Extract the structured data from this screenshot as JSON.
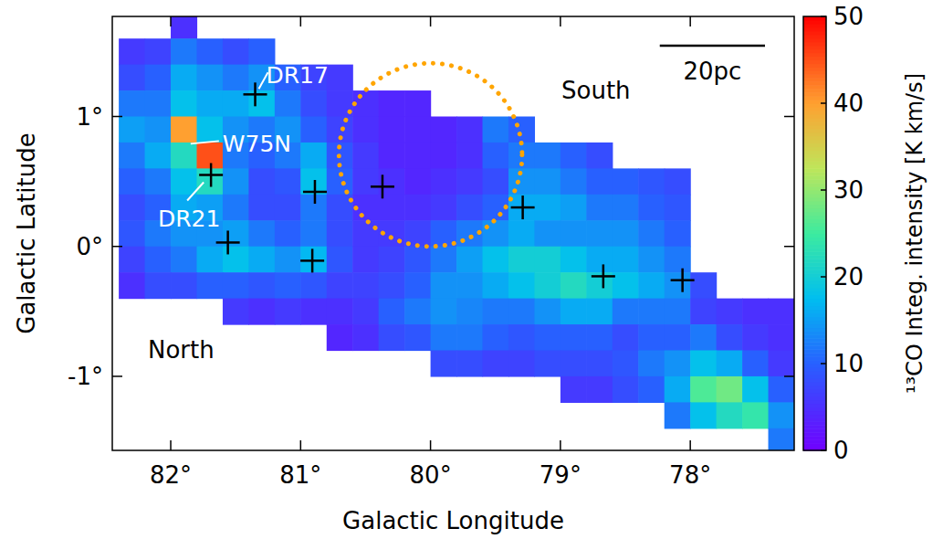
{
  "chart_data": {
    "type": "heatmap",
    "x_label": "Galactic Longitude",
    "y_label": "Galactic Latitude",
    "xlim": [
      82.45,
      77.2
    ],
    "ylim": [
      -1.57,
      1.77
    ],
    "xticks": [
      {
        "value": 82,
        "label": "82°"
      },
      {
        "value": 81,
        "label": "81°"
      },
      {
        "value": 80,
        "label": "80°"
      },
      {
        "value": 79,
        "label": "79°"
      },
      {
        "value": 78,
        "label": "78°"
      }
    ],
    "yticks": [
      {
        "value": -1,
        "label": "-1°"
      },
      {
        "value": 0,
        "label": "0°"
      },
      {
        "value": 1,
        "label": "1°"
      }
    ],
    "x": [
      82.3,
      82.1,
      81.9,
      81.7,
      81.5,
      81.3,
      81.1,
      80.9,
      80.7,
      80.5,
      80.3,
      80.1,
      79.9,
      79.7,
      79.5,
      79.3,
      79.1,
      78.9,
      78.7,
      78.5,
      78.3,
      78.1,
      77.9,
      77.7,
      77.5,
      77.3
    ],
    "y": [
      1.7,
      1.5,
      1.3,
      1.1,
      0.9,
      0.7,
      0.5,
      0.3,
      0.1,
      -0.1,
      -0.3,
      -0.5,
      -0.7,
      -0.9,
      -1.1,
      -1.3,
      -1.5
    ],
    "values": [
      [
        null,
        null,
        5,
        null,
        null,
        null,
        null,
        null,
        null,
        null,
        null,
        null,
        null,
        null,
        null,
        null,
        null,
        null,
        null,
        null,
        null,
        null,
        null,
        null,
        null,
        null
      ],
      [
        6,
        7,
        12,
        10,
        8,
        10,
        null,
        null,
        null,
        null,
        null,
        null,
        null,
        null,
        null,
        null,
        null,
        null,
        null,
        null,
        null,
        null,
        null,
        null,
        null,
        null
      ],
      [
        8,
        10,
        16,
        14,
        12,
        14,
        10,
        7,
        6,
        null,
        null,
        null,
        null,
        null,
        null,
        null,
        null,
        null,
        null,
        null,
        null,
        null,
        null,
        null,
        null,
        null
      ],
      [
        12,
        12,
        18,
        16,
        16,
        18,
        12,
        8,
        6,
        5,
        4,
        4,
        null,
        null,
        null,
        null,
        null,
        null,
        null,
        null,
        null,
        null,
        null,
        null,
        null,
        null
      ],
      [
        15,
        14,
        40,
        18,
        14,
        12,
        14,
        10,
        7,
        5,
        4,
        4,
        4,
        5,
        12,
        10,
        null,
        null,
        null,
        null,
        null,
        null,
        null,
        null,
        null,
        null
      ],
      [
        12,
        16,
        22,
        45,
        12,
        10,
        12,
        16,
        9,
        6,
        4,
        4,
        4,
        5,
        10,
        12,
        12,
        10,
        8,
        null,
        null,
        null,
        null,
        null,
        null,
        null
      ],
      [
        10,
        12,
        18,
        22,
        14,
        8,
        9,
        18,
        10,
        6,
        5,
        4,
        5,
        6,
        8,
        14,
        14,
        12,
        10,
        10,
        9,
        8,
        null,
        null,
        null,
        null
      ],
      [
        8,
        10,
        16,
        15,
        12,
        8,
        8,
        12,
        8,
        5,
        5,
        5,
        6,
        8,
        10,
        16,
        16,
        15,
        12,
        12,
        10,
        9,
        null,
        null,
        null,
        null
      ],
      [
        9,
        12,
        14,
        14,
        15,
        12,
        10,
        12,
        8,
        6,
        6,
        7,
        10,
        12,
        14,
        16,
        14,
        14,
        14,
        14,
        12,
        10,
        null,
        null,
        null,
        null
      ],
      [
        7,
        10,
        12,
        16,
        18,
        16,
        14,
        17,
        9,
        6,
        7,
        9,
        12,
        15,
        18,
        20,
        20,
        18,
        16,
        16,
        14,
        12,
        null,
        null,
        null,
        null
      ],
      [
        5,
        8,
        8,
        10,
        10,
        9,
        10,
        9,
        7,
        7,
        8,
        10,
        14,
        14,
        16,
        18,
        20,
        22,
        20,
        18,
        16,
        14,
        8,
        null,
        null,
        null
      ],
      [
        null,
        null,
        null,
        null,
        6,
        5,
        6,
        5,
        5,
        6,
        10,
        12,
        14,
        13,
        12,
        12,
        14,
        16,
        16,
        12,
        12,
        12,
        7,
        6,
        5,
        5
      ],
      [
        null,
        null,
        null,
        null,
        null,
        null,
        null,
        null,
        4,
        5,
        8,
        9,
        12,
        12,
        10,
        9,
        10,
        10,
        10,
        8,
        10,
        10,
        12,
        8,
        6,
        5
      ],
      [
        null,
        null,
        null,
        null,
        null,
        null,
        null,
        null,
        null,
        null,
        null,
        null,
        8,
        8,
        7,
        7,
        8,
        8,
        8,
        9,
        12,
        14,
        18,
        16,
        10,
        6
      ],
      [
        null,
        null,
        null,
        null,
        null,
        null,
        null,
        null,
        null,
        null,
        null,
        null,
        null,
        null,
        null,
        null,
        null,
        6,
        6,
        8,
        10,
        16,
        26,
        28,
        18,
        10
      ],
      [
        null,
        null,
        null,
        null,
        null,
        null,
        null,
        null,
        null,
        null,
        null,
        null,
        null,
        null,
        null,
        null,
        null,
        null,
        null,
        null,
        null,
        12,
        18,
        22,
        24,
        14
      ],
      [
        null,
        null,
        null,
        null,
        null,
        null,
        null,
        null,
        null,
        null,
        null,
        null,
        null,
        null,
        null,
        null,
        null,
        null,
        null,
        null,
        null,
        null,
        null,
        null,
        null,
        12
      ]
    ],
    "colorbar": {
      "label": "¹³CO Integ. intensity [K km/s]",
      "range": [
        0,
        50
      ],
      "ticks": [
        0,
        10,
        20,
        30,
        40,
        50
      ]
    },
    "points": {
      "x": [
        81.35,
        81.69,
        81.56,
        80.89,
        80.91,
        80.37,
        79.29,
        78.67,
        78.06
      ],
      "y": [
        1.17,
        0.55,
        0.03,
        0.42,
        -0.11,
        0.46,
        0.3,
        -0.23,
        -0.26
      ],
      "marker": "plus",
      "color": "#000000"
    },
    "annotations": [
      {
        "text": "DR17",
        "x": 81.35,
        "y": 1.17
      },
      {
        "text": "W75N",
        "x": 81.91,
        "y": 0.79
      },
      {
        "text": "DR21",
        "x": 81.69,
        "y": 0.55
      }
    ],
    "region_labels": [
      "North",
      "South"
    ],
    "circle": {
      "x": 80.0,
      "y": 0.705,
      "radius": 0.705,
      "color": "#ffa500",
      "line_style": "dotted"
    },
    "scale_bar": {
      "label": "20pc",
      "length": 0.81
    }
  }
}
